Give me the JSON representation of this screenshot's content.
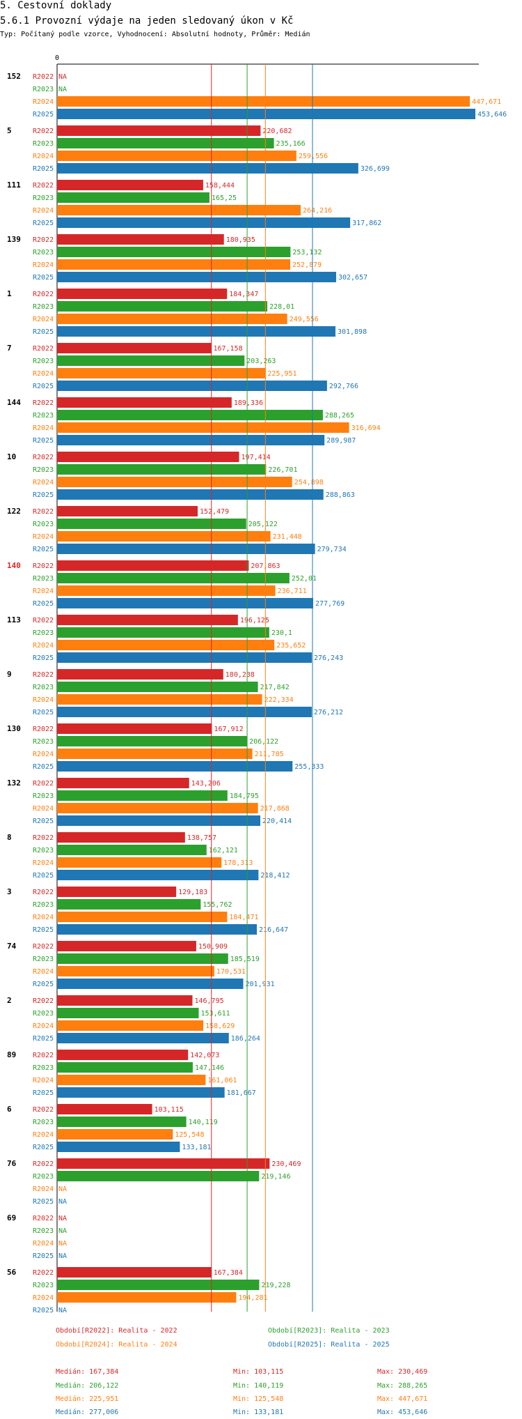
{
  "header": {
    "section": "5. Cestovní doklady",
    "title": "5.6.1 Provozní výdaje na jeden sledovaný úkon v Kč",
    "subtitle": "Typ: Počítaný podle vzorce, Vyhodnocení: Absolutní hodnoty, Průměr: Medián"
  },
  "colors": {
    "R2022": "#d62728",
    "R2023": "#2ca02c",
    "R2024": "#ff7f0e",
    "R2025": "#1f77b4",
    "highlight": "#d62728"
  },
  "chart_data": {
    "type": "bar",
    "orientation": "horizontal",
    "axis_zero_label": "0",
    "series_names": [
      "R2022",
      "R2023",
      "R2024",
      "R2025"
    ],
    "x_range": [
      0,
      453.646
    ],
    "groups": [
      {
        "id": "152",
        "values": [
          null,
          null,
          447.671,
          453.646
        ],
        "labels": [
          "NA",
          "NA",
          "447,671",
          "453,646"
        ]
      },
      {
        "id": "5",
        "values": [
          220.682,
          235.166,
          259.556,
          326.699
        ],
        "labels": [
          "220,682",
          "235,166",
          "259,556",
          "326,699"
        ]
      },
      {
        "id": "111",
        "values": [
          158.444,
          165.25,
          264.216,
          317.862
        ],
        "labels": [
          "158,444",
          "165,25",
          "264,216",
          "317,862"
        ]
      },
      {
        "id": "139",
        "values": [
          180.935,
          253.132,
          252.879,
          302.657
        ],
        "labels": [
          "180,935",
          "253,132",
          "252,879",
          "302,657"
        ]
      },
      {
        "id": "1",
        "values": [
          184.347,
          228.01,
          249.556,
          301.898
        ],
        "labels": [
          "184,347",
          "228,01",
          "249,556",
          "301,898"
        ]
      },
      {
        "id": "7",
        "values": [
          167.158,
          203.263,
          225.951,
          292.766
        ],
        "labels": [
          "167,158",
          "203,263",
          "225,951",
          "292,766"
        ]
      },
      {
        "id": "144",
        "values": [
          189.336,
          288.265,
          316.694,
          289.987
        ],
        "labels": [
          "189,336",
          "288,265",
          "316,694",
          "289,987"
        ]
      },
      {
        "id": "10",
        "values": [
          197.414,
          226.701,
          254.898,
          288.863
        ],
        "labels": [
          "197,414",
          "226,701",
          "254,898",
          "288,863"
        ]
      },
      {
        "id": "122",
        "values": [
          152.479,
          205.122,
          231.448,
          279.734
        ],
        "labels": [
          "152,479",
          "205,122",
          "231,448",
          "279,734"
        ]
      },
      {
        "id": "140",
        "highlight": true,
        "values": [
          207.863,
          252.01,
          236.711,
          277.769
        ],
        "labels": [
          "207,863",
          "252,01",
          "236,711",
          "277,769"
        ]
      },
      {
        "id": "113",
        "values": [
          196.125,
          230.1,
          235.652,
          276.243
        ],
        "labels": [
          "196,125",
          "230,1",
          "235,652",
          "276,243"
        ]
      },
      {
        "id": "9",
        "values": [
          180.238,
          217.842,
          222.334,
          276.212
        ],
        "labels": [
          "180,238",
          "217,842",
          "222,334",
          "276,212"
        ]
      },
      {
        "id": "130",
        "values": [
          167.912,
          206.122,
          211.785,
          255.333
        ],
        "labels": [
          "167,912",
          "206,122",
          "211,785",
          "255,333"
        ]
      },
      {
        "id": "132",
        "values": [
          143.206,
          184.795,
          217.868,
          220.414
        ],
        "labels": [
          "143,206",
          "184,795",
          "217,868",
          "220,414"
        ]
      },
      {
        "id": "8",
        "values": [
          138.757,
          162.121,
          178.313,
          218.412
        ],
        "labels": [
          "138,757",
          "162,121",
          "178,313",
          "218,412"
        ]
      },
      {
        "id": "3",
        "values": [
          129.183,
          155.762,
          184.471,
          216.647
        ],
        "labels": [
          "129,183",
          "155,762",
          "184,471",
          "216,647"
        ]
      },
      {
        "id": "74",
        "values": [
          150.909,
          185.519,
          170.531,
          201.931
        ],
        "labels": [
          "150,909",
          "185,519",
          "170,531",
          "201,931"
        ]
      },
      {
        "id": "2",
        "values": [
          146.795,
          153.611,
          158.629,
          186.264
        ],
        "labels": [
          "146,795",
          "153,611",
          "158,629",
          "186,264"
        ]
      },
      {
        "id": "89",
        "values": [
          142.073,
          147.146,
          161.061,
          181.667
        ],
        "labels": [
          "142,073",
          "147,146",
          "161,061",
          "181,667"
        ]
      },
      {
        "id": "6",
        "values": [
          103.115,
          140.119,
          125.548,
          133.181
        ],
        "labels": [
          "103,115",
          "140,119",
          "125,548",
          "133,181"
        ]
      },
      {
        "id": "76",
        "values": [
          230.469,
          219.146,
          null,
          null
        ],
        "labels": [
          "230,469",
          "219,146",
          "NA",
          "NA"
        ]
      },
      {
        "id": "69",
        "values": [
          null,
          null,
          null,
          null
        ],
        "labels": [
          "NA",
          "NA",
          "NA",
          "NA"
        ]
      },
      {
        "id": "56",
        "values": [
          167.384,
          219.228,
          194.281,
          null
        ],
        "labels": [
          "167,384",
          "219,228",
          "194,281",
          "NA"
        ]
      }
    ],
    "median_lines": [
      167.384,
      206.122,
      225.951,
      277.006
    ]
  },
  "legend": {
    "periods": [
      "Období[R2022]: Realita - 2022",
      "Období[R2023]: Realita - 2023",
      "Období[R2024]: Realita - 2024",
      "Období[R2025]: Realita - 2025"
    ],
    "stats": [
      {
        "median": "Medián: 167,384",
        "min": "Min: 103,115",
        "max": "Max: 230,469"
      },
      {
        "median": "Medián: 206,122",
        "min": "Min: 140,119",
        "max": "Max: 288,265"
      },
      {
        "median": "Medián: 225,951",
        "min": "Min: 125,548",
        "max": "Max: 447,671"
      },
      {
        "median": "Medián: 277,006",
        "min": "Min: 133,181",
        "max": "Max: 453,646"
      }
    ]
  }
}
